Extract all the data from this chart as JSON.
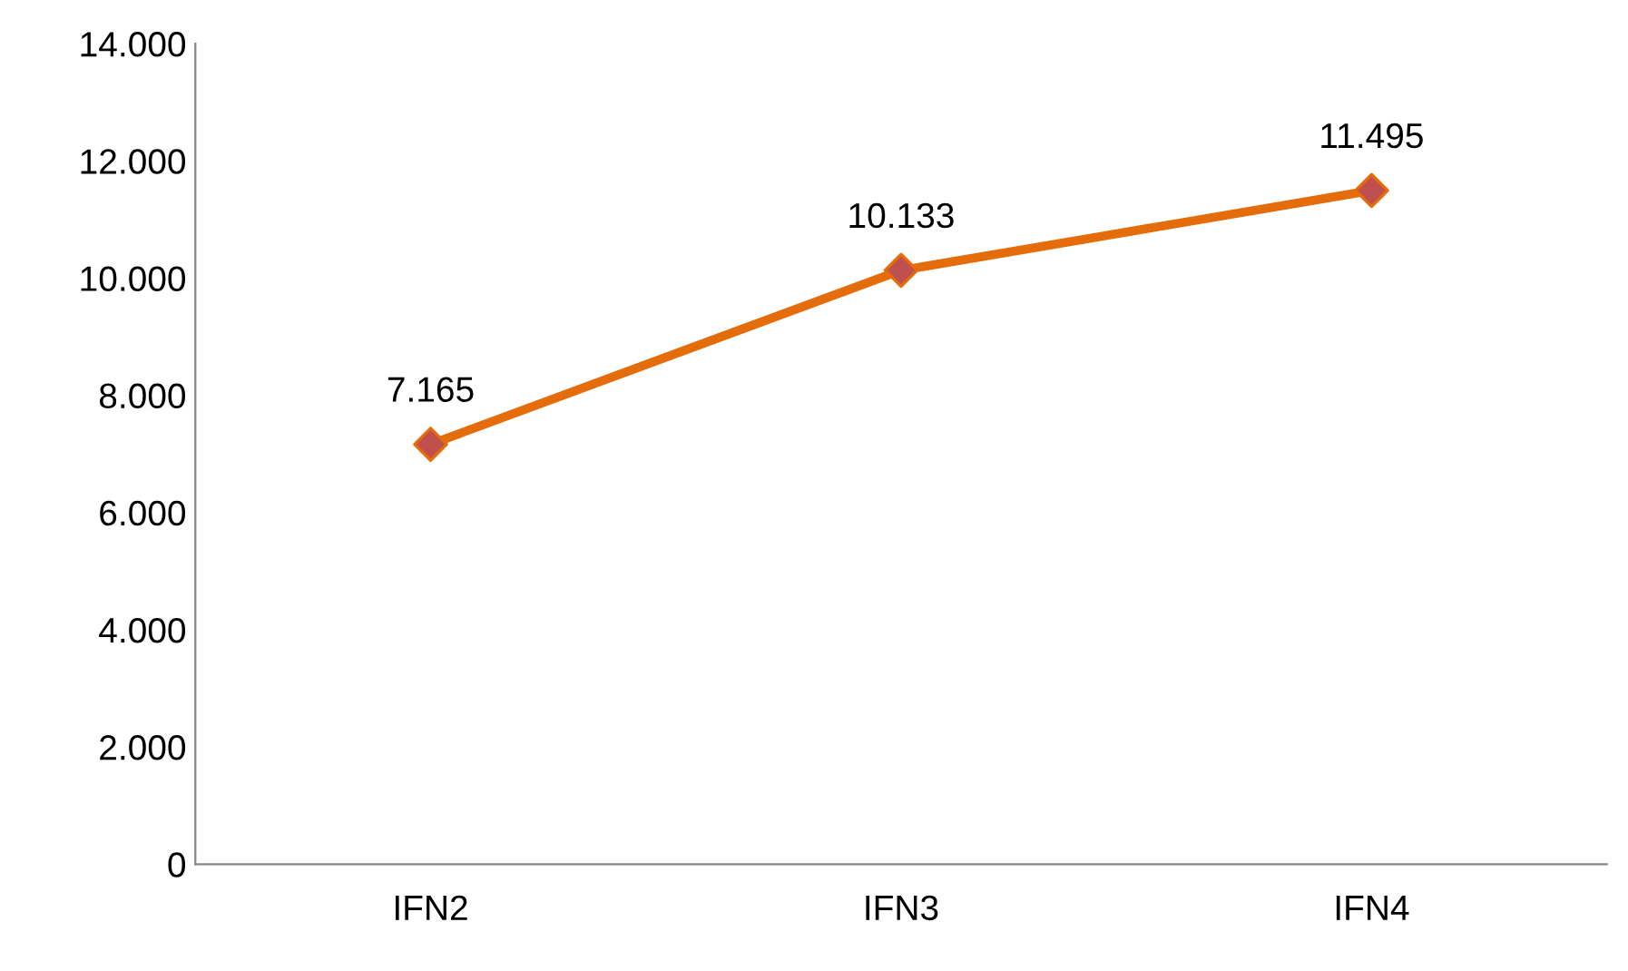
{
  "chart_data": {
    "type": "line",
    "categories": [
      "IFN2",
      "IFN3",
      "IFN4"
    ],
    "series": [
      {
        "color": "#e46c0a",
        "colors": [
          "#c0504d",
          "#c0504d",
          "#c0504d"
        ],
        "values": [
          7165,
          10133,
          11495
        ],
        "value_labels": [
          "7.165",
          "10.133",
          "11.495"
        ]
      }
    ],
    "marker": "diamond",
    "line_style": "solid",
    "grid": false,
    "legend": false,
    "ylim": [
      0,
      14000
    ],
    "yticks": [
      0,
      {
        "value": 2000,
        "label": "2.000"
      },
      {
        "value": 4000,
        "label": "4.000"
      },
      {
        "value": 6000,
        "label": "6.000"
      },
      {
        "value": 8000,
        "label": "8.000"
      },
      {
        "value": 10000,
        "label": "10.000"
      },
      {
        "value": 12000,
        "label": "12.000"
      },
      {
        "value": 14000,
        "label": "14.000"
      }
    ]
  }
}
